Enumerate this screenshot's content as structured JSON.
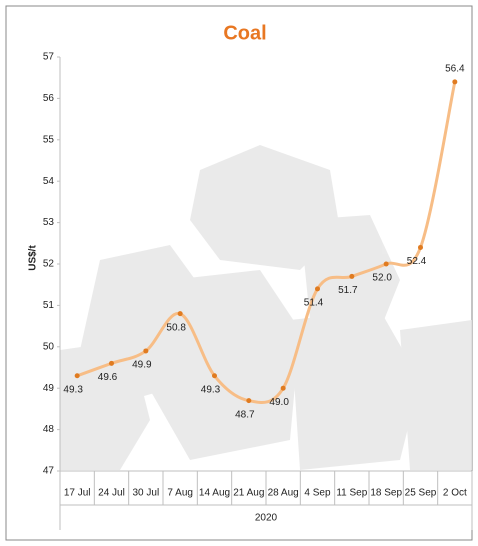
{
  "chart_data": {
    "type": "line",
    "title": "Coal",
    "y_label": "US$/t",
    "x_group_label": "2020",
    "categories": [
      "17 Jul",
      "24 Jul",
      "30 Jul",
      "7 Aug",
      "14 Aug",
      "21 Aug",
      "28 Aug",
      "4 Sep",
      "11 Sep",
      "18 Sep",
      "25 Sep",
      "2 Oct"
    ],
    "series": [
      {
        "name": "Coal",
        "color": "#f7bd86",
        "marker_color": "#e07b20",
        "values": [
          49.3,
          49.6,
          49.9,
          50.8,
          49.3,
          48.7,
          49.0,
          51.4,
          51.7,
          52.0,
          52.4,
          56.4
        ],
        "value_labels": [
          "49.3",
          "49.6",
          "49.9",
          "50.8",
          "49.3",
          "48.7",
          "49.0",
          "51.4",
          "51.7",
          "52.0",
          "52.4",
          "56.4"
        ]
      }
    ],
    "ylim": [
      47,
      57
    ],
    "yticks": [
      47,
      48,
      49,
      50,
      51,
      52,
      53,
      54,
      55,
      56,
      57
    ],
    "title_color": "#e87722"
  }
}
